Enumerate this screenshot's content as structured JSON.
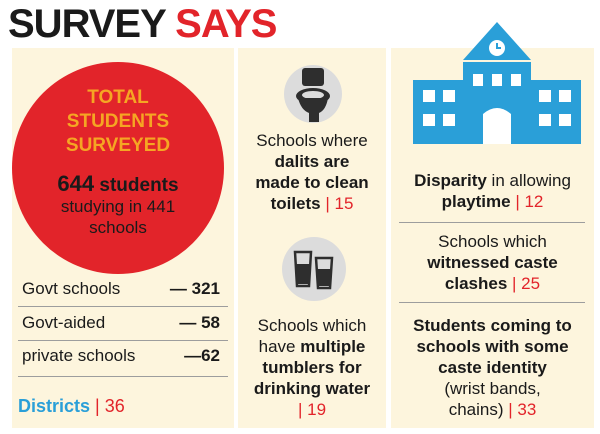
{
  "title": {
    "part1": "SURVEY",
    "part2": "SAYS"
  },
  "total": {
    "heading": [
      "TOTAL",
      "STUDENTS",
      "SURVEYED"
    ],
    "students_num": "644",
    "students_word": "students",
    "line2": "studying in 441",
    "line3": "schools"
  },
  "rows": [
    {
      "label": "Govt schools",
      "value": "— 321"
    },
    {
      "label": "Govt-aided",
      "value": "— 58"
    },
    {
      "label": "private schools",
      "value": "—62"
    }
  ],
  "districts": {
    "label": "Districts",
    "sep": "|",
    "value": "36"
  },
  "toilets": {
    "icon": "toilet-icon",
    "l1": "Schools where",
    "l2": "dalits are",
    "l3": "made to clean",
    "l4": "toilets",
    "sep": "|",
    "value": "15"
  },
  "tumblers": {
    "icon": "tumblers-icon",
    "l1": "Schools which",
    "l2a": "have",
    "l2b": "multiple",
    "l3": "tumblers for",
    "l4": "drinking water",
    "sep": "|",
    "value": "19"
  },
  "playtime": {
    "icon": "school-building-icon",
    "l1a": "Disparity",
    "l1b": "in allowing",
    "l2": "playtime",
    "sep": "|",
    "value": "12"
  },
  "clashes": {
    "l1": "Schools which",
    "l2": "witnessed caste",
    "l3": "clashes",
    "sep": "|",
    "value": "25"
  },
  "identity": {
    "l1": "Students coming to",
    "l2": "schools with some",
    "l3": "caste identity",
    "l4": "(wrist bands,",
    "l5": "chains)",
    "sep": "|",
    "value": "33"
  },
  "colors": {
    "red": "#e2242a",
    "orange": "#f5a623",
    "blue": "#2a9fd8",
    "panel": "#fdf5dd"
  }
}
